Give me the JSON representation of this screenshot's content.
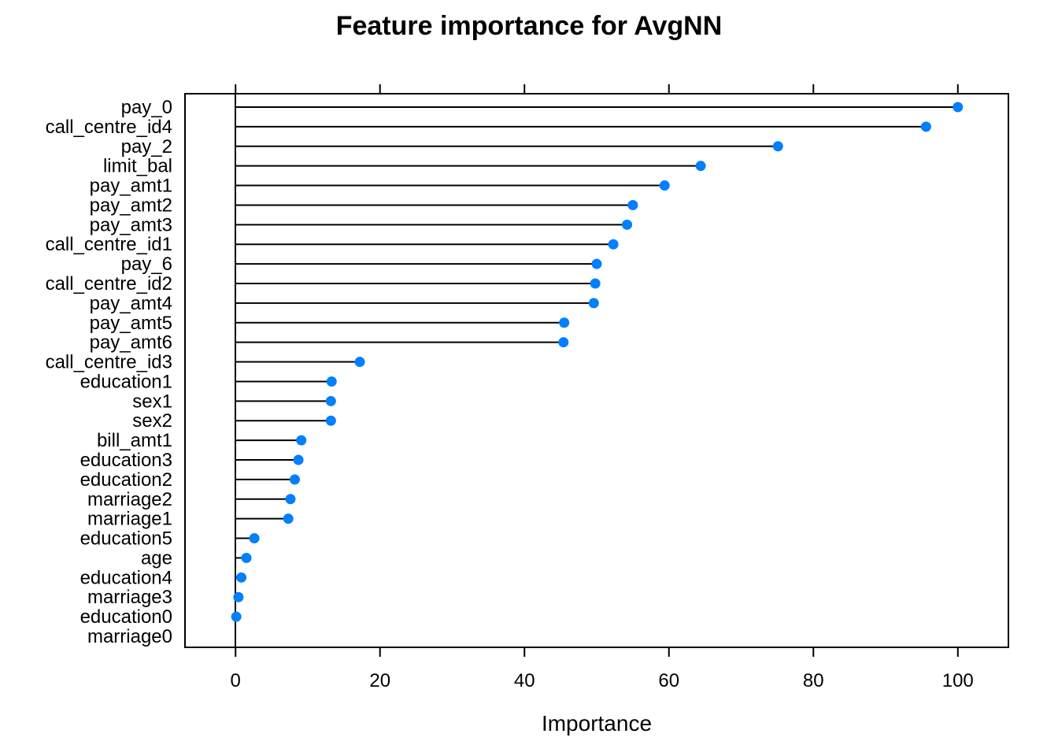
{
  "chart_data": {
    "type": "dot",
    "title": "Feature importance for AvgNN",
    "xlabel": "Importance",
    "ylabel": "",
    "xlim": [
      -7,
      107
    ],
    "xticks": [
      0,
      20,
      40,
      60,
      80,
      100
    ],
    "grid": false,
    "categories": [
      "pay_0",
      "call_centre_id4",
      "pay_2",
      "limit_bal",
      "pay_amt1",
      "pay_amt2",
      "pay_amt3",
      "call_centre_id1",
      "pay_6",
      "call_centre_id2",
      "pay_amt4",
      "pay_amt5",
      "pay_amt6",
      "call_centre_id3",
      "education1",
      "sex1",
      "sex2",
      "bill_amt1",
      "education3",
      "education2",
      "marriage2",
      "marriage1",
      "education5",
      "age",
      "education4",
      "marriage3",
      "education0",
      "marriage0"
    ],
    "values": [
      100,
      95.6,
      75.1,
      64.4,
      59.4,
      55.0,
      54.2,
      52.3,
      50.0,
      49.8,
      49.6,
      45.5,
      45.4,
      17.2,
      13.3,
      13.2,
      13.2,
      9.1,
      8.7,
      8.2,
      7.6,
      7.3,
      2.6,
      1.5,
      0.8,
      0.4,
      0.1,
      0
    ],
    "marker_color": "#0080ff",
    "line_color": "#000000"
  }
}
